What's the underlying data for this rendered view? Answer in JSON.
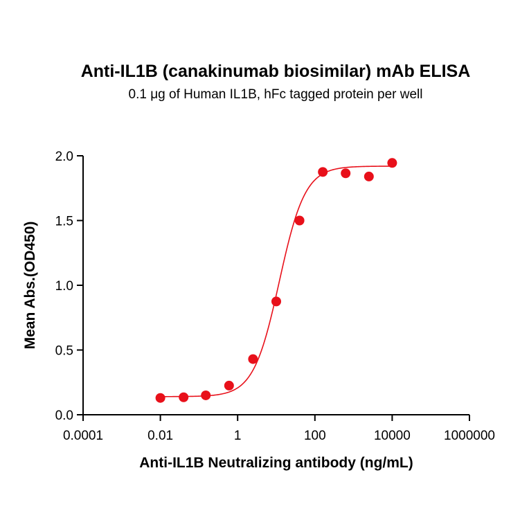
{
  "chart_data": {
    "type": "scatter",
    "title": "Anti-IL1B (canakinumab biosimilar) mAb ELISA",
    "subtitle": "0.1 μg of Human IL1B, hFc tagged protein per well",
    "xlabel": "Anti-IL1B Neutralizing antibody (ng/mL)",
    "ylabel": "Mean Abs.(OD450)",
    "x_scale": "log",
    "xlim": [
      0.0001,
      1000000
    ],
    "ylim": [
      0,
      2.0
    ],
    "x_ticks": [
      "0.0001",
      "0.01",
      "1",
      "100",
      "10000",
      "1000000"
    ],
    "y_ticks": [
      "0.0",
      "0.5",
      "1.0",
      "1.5",
      "2.0"
    ],
    "grid": false,
    "color": "#e8101a",
    "points": [
      {
        "x": 0.01,
        "y": 0.13
      },
      {
        "x": 0.04,
        "y": 0.135
      },
      {
        "x": 0.15,
        "y": 0.15
      },
      {
        "x": 0.6,
        "y": 0.225
      },
      {
        "x": 2.5,
        "y": 0.43
      },
      {
        "x": 10,
        "y": 0.875
      },
      {
        "x": 40,
        "y": 1.5
      },
      {
        "x": 160,
        "y": 1.875
      },
      {
        "x": 625,
        "y": 1.865
      },
      {
        "x": 2500,
        "y": 1.84
      },
      {
        "x": 10000,
        "y": 1.945
      }
    ],
    "fit_curve": {
      "model": "4PL",
      "bottom": 0.14,
      "top": 1.92,
      "ec50": 12,
      "hill": 1.3
    }
  }
}
